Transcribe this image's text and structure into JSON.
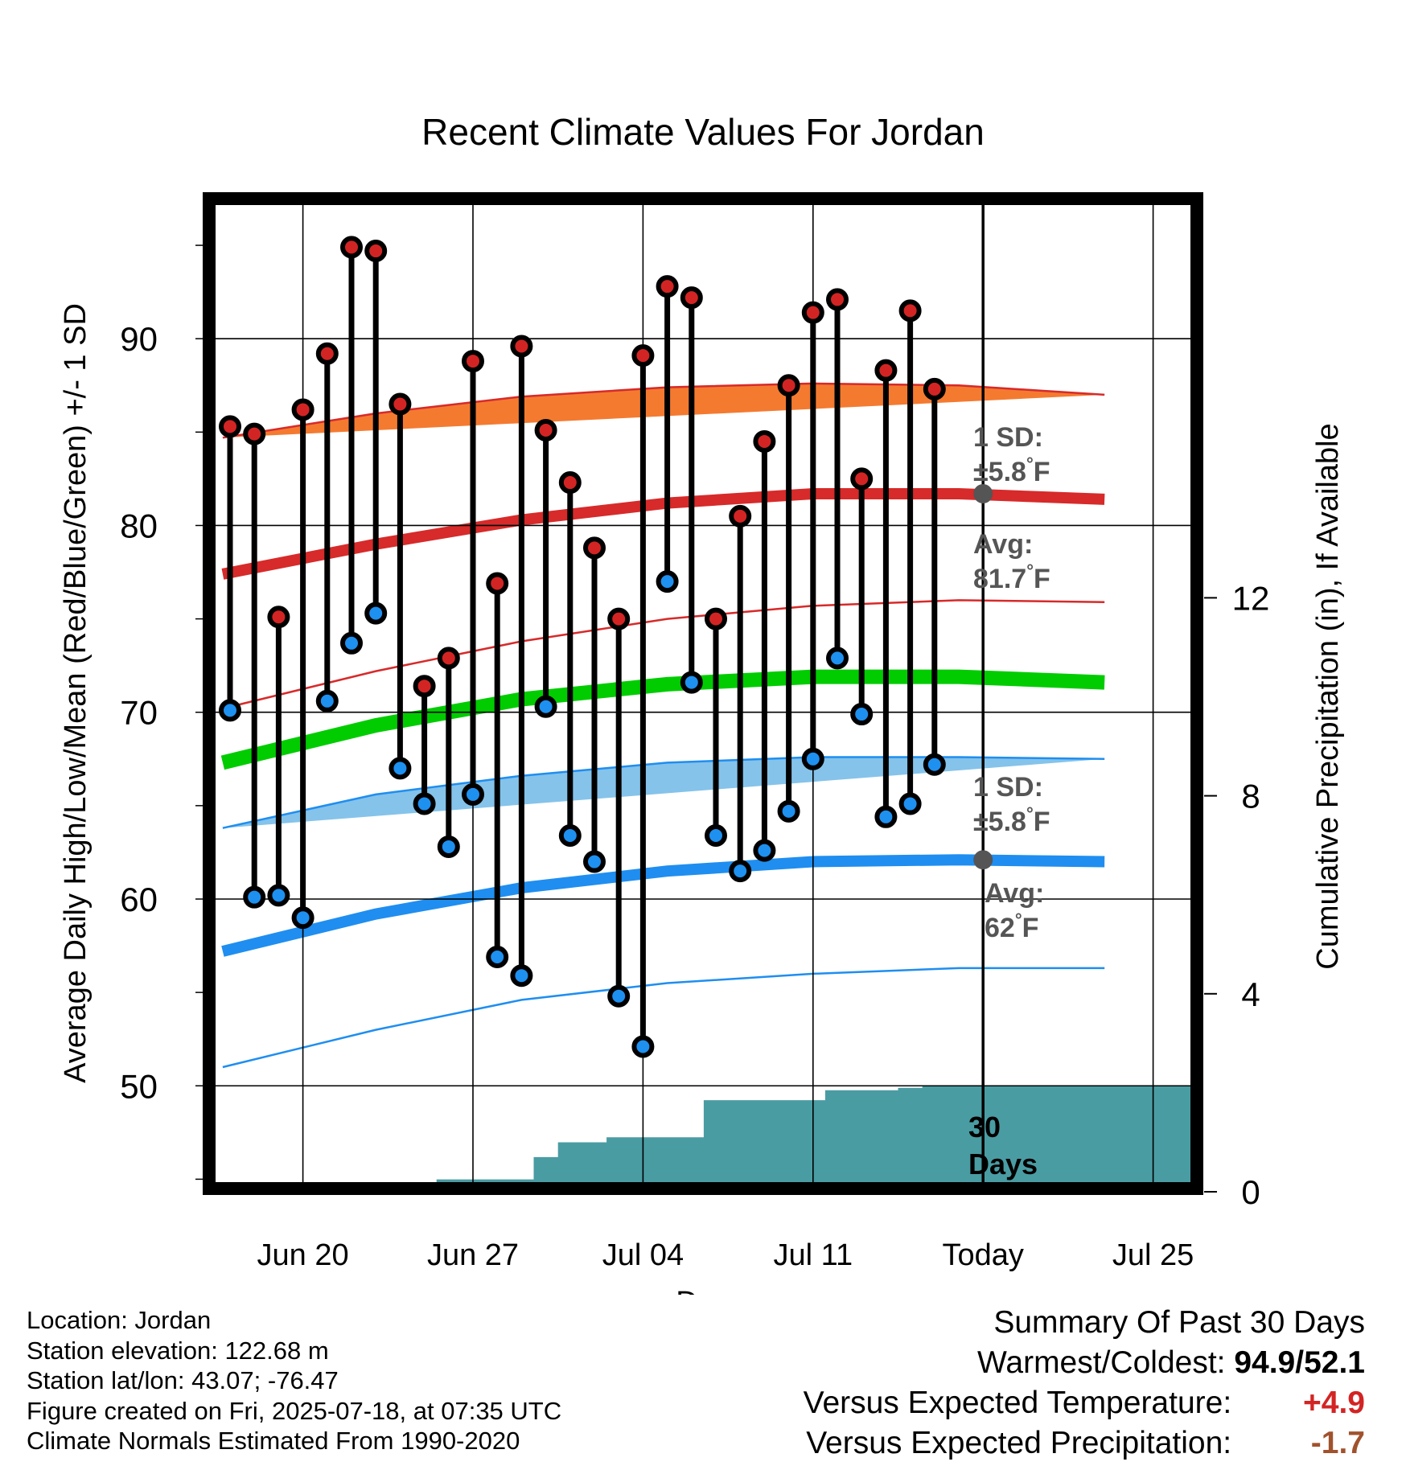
{
  "chart_data": {
    "type": "line",
    "title": "Recent Climate Values For Jordan",
    "xlabel": "Day",
    "ylabel": "Average Daily High/Low/Mean (Red/Blue/Green) +/- 1 SD",
    "y2label": "Cumulative Precipitation (in), If Available",
    "xlim": [
      -0.3,
      39.2
    ],
    "ylim": [
      44.5,
      97.5
    ],
    "y2lim": [
      0,
      20
    ],
    "grid": true,
    "xticks": [
      {
        "pos": 3,
        "label": "Jun 20"
      },
      {
        "pos": 10,
        "label": "Jun 27"
      },
      {
        "pos": 17,
        "label": "Jul 04"
      },
      {
        "pos": 24,
        "label": "Jul 11"
      },
      {
        "pos": 31,
        "label": "Today"
      },
      {
        "pos": 38,
        "label": "Jul 25"
      }
    ],
    "yticks": [
      50,
      60,
      70,
      80,
      90
    ],
    "y2ticks": [
      0,
      4,
      8,
      12
    ],
    "daily_high": [
      85.3,
      84.9,
      75.1,
      86.2,
      89.2,
      94.9,
      94.7,
      86.5,
      71.4,
      72.9,
      88.8,
      76.9,
      89.6,
      85.1,
      82.3,
      78.8,
      75.0,
      89.1,
      92.8,
      92.2,
      75.0,
      80.5,
      84.5,
      87.5,
      91.4,
      92.1,
      82.5,
      88.3,
      91.5,
      87.3
    ],
    "daily_low": [
      70.1,
      60.1,
      60.2,
      59.0,
      70.6,
      73.7,
      75.3,
      67.0,
      65.1,
      62.8,
      65.6,
      56.9,
      55.9,
      70.3,
      63.4,
      62.0,
      54.8,
      52.1,
      77.0,
      71.6,
      63.4,
      61.5,
      62.6,
      64.7,
      67.5,
      72.9,
      69.9,
      64.4,
      65.1,
      67.2
    ],
    "normal_high": [
      77.4,
      79.0,
      80.3,
      81.2,
      81.7,
      81.7,
      81.4
    ],
    "normal_high_sd_upper": [
      84.7,
      86.0,
      86.9,
      87.4,
      87.6,
      87.5,
      87.0
    ],
    "normal_high_sd_lower": [
      70.2,
      72.2,
      73.8,
      75.0,
      75.7,
      76.0,
      75.9
    ],
    "normal_mean": [
      67.3,
      69.3,
      70.7,
      71.5,
      71.9,
      71.9,
      71.6
    ],
    "normal_low": [
      57.2,
      59.2,
      60.6,
      61.5,
      62.0,
      62.1,
      62.0
    ],
    "normal_low_sd_upper": [
      63.8,
      65.6,
      66.6,
      67.3,
      67.6,
      67.6,
      67.5
    ],
    "normal_low_sd_lower": [
      51.0,
      53.0,
      54.6,
      55.5,
      56.0,
      56.3,
      56.3
    ],
    "precip_cumulative": [
      0.0,
      0.0,
      0.0,
      0.02,
      0.05,
      0.1,
      0.1,
      0.1,
      0.1,
      0.25,
      0.25,
      0.25,
      0.25,
      0.7,
      1.0,
      1.0,
      1.1,
      1.1,
      1.1,
      1.1,
      1.85,
      1.85,
      1.85,
      1.85,
      1.85,
      2.05,
      2.05,
      2.05,
      2.1,
      2.15
    ],
    "annotations": {
      "high_sd": [
        "1 SD:",
        "±5.8",
        "°",
        "F"
      ],
      "high_avg": [
        "Avg:",
        "81.7",
        "°",
        "F"
      ],
      "low_sd": [
        "1 SD:",
        "±5.8",
        "°",
        "F"
      ],
      "low_avg": [
        "Avg:",
        "62",
        "°",
        "F"
      ],
      "days": [
        "30",
        "Days"
      ]
    },
    "colors": {
      "high_band": "#f47a30",
      "high_line": "#d72a2a",
      "mean_line": "#00cc00",
      "low_band": "#85c3ea",
      "low_line": "#1f8ef0",
      "high_point": "#d32424",
      "low_point": "#1e90f0",
      "precip": "#4a9ca3",
      "annotation": "#555555",
      "today_marker": "#555555"
    }
  },
  "info": {
    "location": "Location: Jordan",
    "elevation": "Station elevation: 122.68 m",
    "latlon": "Station lat/lon: 43.07; -76.47",
    "created": "Figure created on Fri, 2025-07-18, at 07:35 UTC",
    "normals": "Climate Normals Estimated From 1990-2020"
  },
  "summary": {
    "title": "Summary Of Past 30 Days",
    "warmest_label": "Warmest/Coldest:",
    "warmest_value": "94.9/52.1",
    "temp_label": "Versus Expected Temperature:",
    "temp_value": "+4.9",
    "temp_color": "#d32424",
    "precip_label": "Versus Expected Precipitation:",
    "precip_value": "-1.7",
    "precip_color": "#a0522d"
  }
}
